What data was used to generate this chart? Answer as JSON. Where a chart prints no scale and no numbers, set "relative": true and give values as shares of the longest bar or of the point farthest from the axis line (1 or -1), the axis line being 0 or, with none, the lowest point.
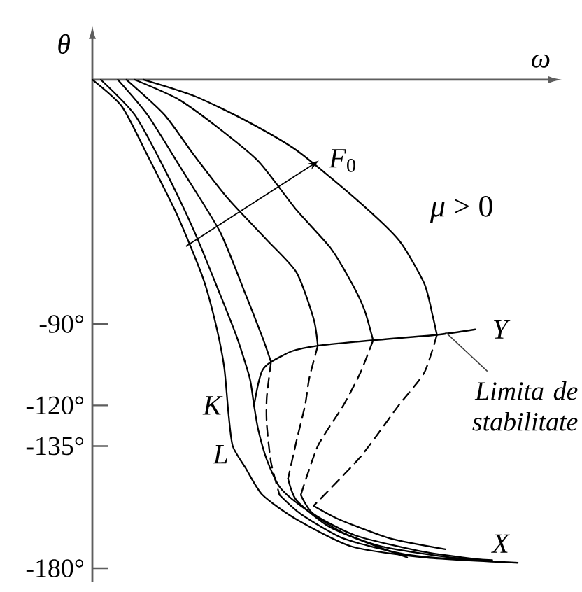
{
  "chart_data": {
    "type": "line",
    "orientation": "horizontal",
    "relative": true,
    "xlabel": "ω",
    "ylabel": "θ",
    "ylim": [
      -185,
      15
    ],
    "yticks": [
      {
        "value": -90,
        "label": "-90°"
      },
      {
        "value": -120,
        "label": "-120°"
      },
      {
        "value": -135,
        "label": "-135°"
      },
      {
        "value": -180,
        "label": "-180°"
      }
    ],
    "tick_labels": "y",
    "series": [
      {
        "color": "#000000",
        "line_style": "solid",
        "x": [
          0,
          -10,
          -28,
          -50,
          -73,
          -90,
          -106,
          -123,
          -135,
          -143,
          -153,
          -162,
          -172,
          -176,
          -178
        ],
        "values": [
          0,
          0.07,
          0.13,
          0.2,
          0.26,
          0.29,
          0.31,
          0.32,
          0.33,
          0.36,
          0.4,
          0.48,
          0.61,
          0.78,
          1
        ]
      },
      {
        "color": "#000000",
        "line_style": "solid",
        "x": [
          0,
          -13,
          -33,
          -56,
          -79,
          -95,
          -110,
          -120,
          -129,
          -140,
          -150,
          -157,
          -167,
          -176
        ],
        "values": [
          0.02,
          0.1,
          0.17,
          0.24,
          0.3,
          0.34,
          0.37,
          0.38,
          0.39,
          0.41,
          0.44,
          0.49,
          0.59,
          0.74
        ]
      },
      {
        "color": "#000000",
        "line_style": "solid",
        "x": [
          0,
          -13,
          -33,
          -56,
          -79,
          -95,
          -104
        ],
        "values": [
          0.06,
          0.13,
          0.21,
          0.3,
          0.36,
          0.4,
          0.42
        ]
      },
      {
        "color": "#000000",
        "line_style": "dashed",
        "x": [
          -104,
          -117,
          -127,
          -141,
          -153
        ],
        "values": [
          0.42,
          0.41,
          0.41,
          0.42,
          0.44
        ]
      },
      {
        "color": "#000000",
        "line_style": "solid",
        "x": [
          -153,
          -160,
          -169,
          -175,
          -177
        ],
        "values": [
          0.44,
          0.49,
          0.59,
          0.74,
          0.89
        ]
      },
      {
        "color": "#000000",
        "line_style": "solid",
        "x": [
          0,
          -13,
          -28,
          -44,
          -59,
          -71,
          -88,
          -98
        ],
        "values": [
          0.08,
          0.17,
          0.24,
          0.32,
          0.41,
          0.48,
          0.52,
          0.53
        ]
      },
      {
        "color": "#000000",
        "line_style": "dashed",
        "x": [
          -98,
          -110,
          -120,
          -133,
          -147
        ],
        "values": [
          0.53,
          0.51,
          0.5,
          0.48,
          0.46
        ]
      },
      {
        "color": "#000000",
        "line_style": "solid",
        "x": [
          -147,
          -155,
          -165,
          -172,
          -176,
          -177
        ],
        "values": [
          0.46,
          0.48,
          0.56,
          0.68,
          0.84,
          0.94
        ]
      },
      {
        "color": "#000000",
        "line_style": "solid",
        "x": [
          0,
          -7,
          -17,
          -30,
          -48,
          -62,
          -75,
          -85,
          -96
        ],
        "values": [
          0.1,
          0.2,
          0.29,
          0.39,
          0.48,
          0.56,
          0.61,
          0.64,
          0.66
        ]
      },
      {
        "color": "#000000",
        "line_style": "dashed",
        "x": [
          -96,
          -108,
          -120,
          -135,
          -153
        ],
        "values": [
          0.66,
          0.63,
          0.59,
          0.53,
          0.49
        ]
      },
      {
        "color": "#000000",
        "line_style": "solid",
        "x": [
          -153,
          -160,
          -168,
          -174,
          -177
        ],
        "values": [
          0.49,
          0.52,
          0.62,
          0.78,
          0.92
        ]
      },
      {
        "color": "#000000",
        "line_style": "solid",
        "x": [
          0,
          -6,
          -15,
          -26,
          -44,
          -59,
          -75,
          -87,
          -94
        ],
        "values": [
          0.12,
          0.24,
          0.36,
          0.48,
          0.62,
          0.72,
          0.78,
          0.8,
          0.81
        ]
      },
      {
        "color": "#000000",
        "line_style": "dashed",
        "x": [
          -94,
          -108,
          -120,
          -139,
          -157
        ],
        "values": [
          0.81,
          0.78,
          0.72,
          0.63,
          0.52
        ]
      },
      {
        "color": "#000000",
        "line_style": "solid",
        "x": [
          -157,
          -162,
          -169,
          -173
        ],
        "values": [
          0.52,
          0.58,
          0.7,
          0.83
        ]
      },
      {
        "color": "#000000",
        "line_style": "solid",
        "x": [
          -120,
          -112,
          -107,
          -104,
          -100,
          -98,
          -96,
          -94,
          -92
        ],
        "values": [
          0.38,
          0.39,
          0.4,
          0.42,
          0.47,
          0.53,
          0.66,
          0.81,
          0.9
        ]
      }
    ],
    "annotations": [
      "*F*$_{0}$",
      "*μ* > 0",
      {
        "text": "K",
        "x": 0.38,
        "y": -120
      },
      {
        "text": "L",
        "x": 0.4,
        "y": -138
      },
      {
        "text": "Y",
        "x": 0.9,
        "y": -92
      },
      {
        "text": "X",
        "x": 1,
        "y": -178
      },
      {
        "text": "Limita de stabilitate",
        "x": 0.83,
        "y": -93
      }
    ]
  }
}
